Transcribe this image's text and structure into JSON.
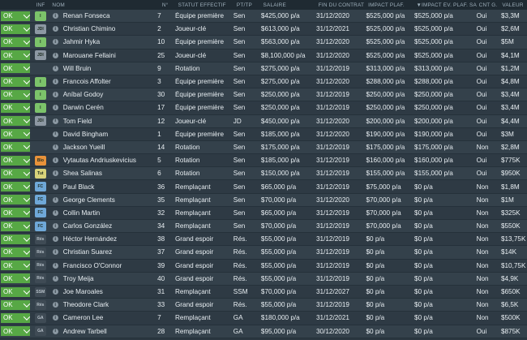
{
  "headers": {
    "inf": "INF",
    "nom": "NOM",
    "num": "N°",
    "statut": "STATUT EFFECTIF",
    "pos": "PT/TP",
    "salaire": "SALAIRE",
    "fin": "FIN DU CONTRAT",
    "impact": "IMPACT PLAF.",
    "impact_ev": "▼IMPACT ÉV. PLAF. SAL.",
    "cnt": "CNT G.",
    "valeur": "VALEUR"
  },
  "colors": {
    "ok_green": "#57a845",
    "badge_green": "#7cc36a",
    "badge_orange": "#e8923a",
    "badge_yellow": "#d8d27a",
    "badge_blue": "#6fa8d8",
    "badge_grey": "#8d98a3",
    "badge_dark": "#3f4b55"
  },
  "players": [
    {
      "sel": "OK",
      "inf": "I",
      "inf_color": "#7cc36a",
      "name": "Renan Fonseca",
      "num": "7",
      "status": "Équipe première",
      "pos": "Sen",
      "salary": "$425,000 p/a",
      "end": "31/12/2020",
      "impact": "$525,000 p/a",
      "impact_ev": "$525,000 p/a",
      "cnt": "Oui",
      "value": "$3,3M"
    },
    {
      "sel": "OK",
      "inf": "JDI",
      "inf_color": "#8d98a3",
      "name": "Christian Chimino",
      "num": "2",
      "status": "Joueur-clé",
      "pos": "Sen",
      "salary": "$613,000 p/a",
      "end": "31/12/2021",
      "impact": "$525,000 p/a",
      "impact_ev": "$525,000 p/a",
      "cnt": "Oui",
      "value": "$2,6M"
    },
    {
      "sel": "OK",
      "inf": "I",
      "inf_color": "#7cc36a",
      "name": "Jahmir Hyka",
      "num": "10",
      "status": "Équipe première",
      "pos": "Sen",
      "salary": "$563,000 p/a",
      "end": "31/12/2020",
      "impact": "$525,000 p/a",
      "impact_ev": "$525,000 p/a",
      "cnt": "Oui",
      "value": "$5M"
    },
    {
      "sel": "OK",
      "inf": "JDI",
      "inf_color": "#8d98a3",
      "name": "Marouane Fellaini",
      "num": "25",
      "status": "Joueur-clé",
      "pos": "Sen",
      "salary": "$8,100,000 p/a",
      "end": "31/12/2020",
      "impact": "$525,000 p/a",
      "impact_ev": "$525,000 p/a",
      "cnt": "Oui",
      "value": "$4,1M"
    },
    {
      "sel": "OK",
      "inf": "",
      "inf_color": "",
      "name": "Will Bruin",
      "num": "9",
      "status": "Rotation",
      "pos": "Sen",
      "salary": "$275,000 p/a",
      "end": "31/12/2019",
      "impact": "$313,000 p/a",
      "impact_ev": "$313,000 p/a",
      "cnt": "Oui",
      "value": "$1,2M"
    },
    {
      "sel": "OK",
      "inf": "I",
      "inf_color": "#7cc36a",
      "name": "Francois Affolter",
      "num": "3",
      "status": "Équipe première",
      "pos": "Sen",
      "salary": "$275,000 p/a",
      "end": "31/12/2020",
      "impact": "$288,000 p/a",
      "impact_ev": "$288,000 p/a",
      "cnt": "Oui",
      "value": "$4,8M"
    },
    {
      "sel": "OK",
      "inf": "I",
      "inf_color": "#7cc36a",
      "name": "Aníbal Godoy",
      "num": "30",
      "status": "Équipe première",
      "pos": "Sen",
      "salary": "$250,000 p/a",
      "end": "31/12/2019",
      "impact": "$250,000 p/a",
      "impact_ev": "$250,000 p/a",
      "cnt": "Oui",
      "value": "$3,4M"
    },
    {
      "sel": "OK",
      "inf": "I",
      "inf_color": "#7cc36a",
      "name": "Darwin Cerén",
      "num": "17",
      "status": "Équipe première",
      "pos": "Sen",
      "salary": "$250,000 p/a",
      "end": "31/12/2019",
      "impact": "$250,000 p/a",
      "impact_ev": "$250,000 p/a",
      "cnt": "Oui",
      "value": "$3,4M"
    },
    {
      "sel": "OK",
      "inf": "JDI",
      "inf_color": "#8d98a3",
      "name": "Tom Field",
      "num": "12",
      "status": "Joueur-clé",
      "pos": "JD",
      "salary": "$450,000 p/a",
      "end": "31/12/2020",
      "impact": "$200,000 p/a",
      "impact_ev": "$200,000 p/a",
      "cnt": "Oui",
      "value": "$4,4M"
    },
    {
      "sel": "OK",
      "inf": "",
      "inf_color": "",
      "name": "David Bingham",
      "num": "1",
      "status": "Équipe première",
      "pos": "Sen",
      "salary": "$185,000 p/a",
      "end": "31/12/2020",
      "impact": "$190,000 p/a",
      "impact_ev": "$190,000 p/a",
      "cnt": "Oui",
      "value": "$3M"
    },
    {
      "sel": "OK",
      "inf": "",
      "inf_color": "",
      "name": "Jackson Yueill",
      "num": "14",
      "status": "Rotation",
      "pos": "Sen",
      "salary": "$175,000 p/a",
      "end": "31/12/2019",
      "impact": "$175,000 p/a",
      "impact_ev": "$175,000 p/a",
      "cnt": "Non",
      "value": "$2,8M"
    },
    {
      "sel": "OK",
      "inf": "Blo",
      "inf_color": "#e8923a",
      "name": "Vytautas Andriuskevicius",
      "num": "5",
      "status": "Rotation",
      "pos": "Sen",
      "salary": "$185,000 p/a",
      "end": "31/12/2019",
      "impact": "$160,000 p/a",
      "impact_ev": "$160,000 p/a",
      "cnt": "Oui",
      "value": "$775K"
    },
    {
      "sel": "OK",
      "inf": "Tut",
      "inf_color": "#d8d27a",
      "name": "Shea Salinas",
      "num": "6",
      "status": "Rotation",
      "pos": "Sen",
      "salary": "$150,000 p/a",
      "end": "31/12/2019",
      "impact": "$155,000 p/a",
      "impact_ev": "$155,000 p/a",
      "cnt": "Oui",
      "value": "$950K"
    },
    {
      "sel": "OK",
      "inf": "FC",
      "inf_color": "#6fa8d8",
      "name": "Paul Black",
      "num": "36",
      "status": "Remplaçant",
      "pos": "Sen",
      "salary": "$65,000 p/a",
      "end": "31/12/2019",
      "impact": "$75,000 p/a",
      "impact_ev": "$0 p/a",
      "cnt": "Non",
      "value": "$1,8M"
    },
    {
      "sel": "OK",
      "inf": "FC",
      "inf_color": "#6fa8d8",
      "name": "George Clements",
      "num": "35",
      "status": "Remplaçant",
      "pos": "Sen",
      "salary": "$70,000 p/a",
      "end": "31/12/2020",
      "impact": "$70,000 p/a",
      "impact_ev": "$0 p/a",
      "cnt": "Non",
      "value": "$1M"
    },
    {
      "sel": "OK",
      "inf": "FC",
      "inf_color": "#6fa8d8",
      "name": "Collin Martin",
      "num": "32",
      "status": "Remplaçant",
      "pos": "Sen",
      "salary": "$65,000 p/a",
      "end": "31/12/2019",
      "impact": "$70,000 p/a",
      "impact_ev": "$0 p/a",
      "cnt": "Non",
      "value": "$325K"
    },
    {
      "sel": "OK",
      "inf": "FC",
      "inf_color": "#6fa8d8",
      "name": "Carlos González",
      "num": "34",
      "status": "Remplaçant",
      "pos": "Sen",
      "salary": "$70,000 p/a",
      "end": "31/12/2019",
      "impact": "$70,000 p/a",
      "impact_ev": "$0 p/a",
      "cnt": "Non",
      "value": "$550K"
    },
    {
      "sel": "OK",
      "inf": "Rés",
      "inf_color": "#3f4b55",
      "name": "Héctor Hernández",
      "num": "38",
      "status": "Grand espoir",
      "pos": "Rés.",
      "salary": "$55,000 p/a",
      "end": "31/12/2019",
      "impact": "$0 p/a",
      "impact_ev": "$0 p/a",
      "cnt": "Non",
      "value": "$13,75K"
    },
    {
      "sel": "OK",
      "inf": "Rés",
      "inf_color": "#3f4b55",
      "name": "Christian Suarez",
      "num": "37",
      "status": "Grand espoir",
      "pos": "Rés.",
      "salary": "$55,000 p/a",
      "end": "31/12/2019",
      "impact": "$0 p/a",
      "impact_ev": "$0 p/a",
      "cnt": "Non",
      "value": "$14K"
    },
    {
      "sel": "OK",
      "inf": "Rés",
      "inf_color": "#3f4b55",
      "name": "Francisco O'Connor",
      "num": "39",
      "status": "Grand espoir",
      "pos": "Rés.",
      "salary": "$55,000 p/a",
      "end": "31/12/2019",
      "impact": "$0 p/a",
      "impact_ev": "$0 p/a",
      "cnt": "Non",
      "value": "$10,75K"
    },
    {
      "sel": "OK",
      "inf": "Rés",
      "inf_color": "#3f4b55",
      "name": "Troy Meija",
      "num": "40",
      "status": "Grand espoir",
      "pos": "Rés.",
      "salary": "$55,000 p/a",
      "end": "31/12/2019",
      "impact": "$0 p/a",
      "impact_ev": "$0 p/a",
      "cnt": "Non",
      "value": "$4,9K"
    },
    {
      "sel": "OK",
      "inf": "SSM",
      "inf_color": "#3f4b55",
      "name": "Joe Maroales",
      "num": "31",
      "status": "Remplaçant",
      "pos": "SSM",
      "salary": "$70,000 p/a",
      "end": "31/12/2027",
      "impact": "$0 p/a",
      "impact_ev": "$0 p/a",
      "cnt": "Non",
      "value": "$650K"
    },
    {
      "sel": "OK",
      "inf": "Rés",
      "inf_color": "#3f4b55",
      "name": "Theodore Clark",
      "num": "33",
      "status": "Grand espoir",
      "pos": "Rés.",
      "salary": "$55,000 p/a",
      "end": "31/12/2019",
      "impact": "$0 p/a",
      "impact_ev": "$0 p/a",
      "cnt": "Non",
      "value": "$6,5K"
    },
    {
      "sel": "OK",
      "inf": "GA",
      "inf_color": "#3f4b55",
      "name": "Cameron Lee",
      "num": "7",
      "status": "Remplaçant",
      "pos": "GA",
      "salary": "$180,000 p/a",
      "end": "31/12/2021",
      "impact": "$0 p/a",
      "impact_ev": "$0 p/a",
      "cnt": "Non",
      "value": "$500K"
    },
    {
      "sel": "OK",
      "inf": "GA",
      "inf_color": "#3f4b55",
      "name": "Andrew Tarbell",
      "num": "28",
      "status": "Remplaçant",
      "pos": "GA",
      "salary": "$95,000 p/a",
      "end": "30/12/2020",
      "impact": "$0 p/a",
      "impact_ev": "$0 p/a",
      "cnt": "Oui",
      "value": "$875K"
    }
  ]
}
